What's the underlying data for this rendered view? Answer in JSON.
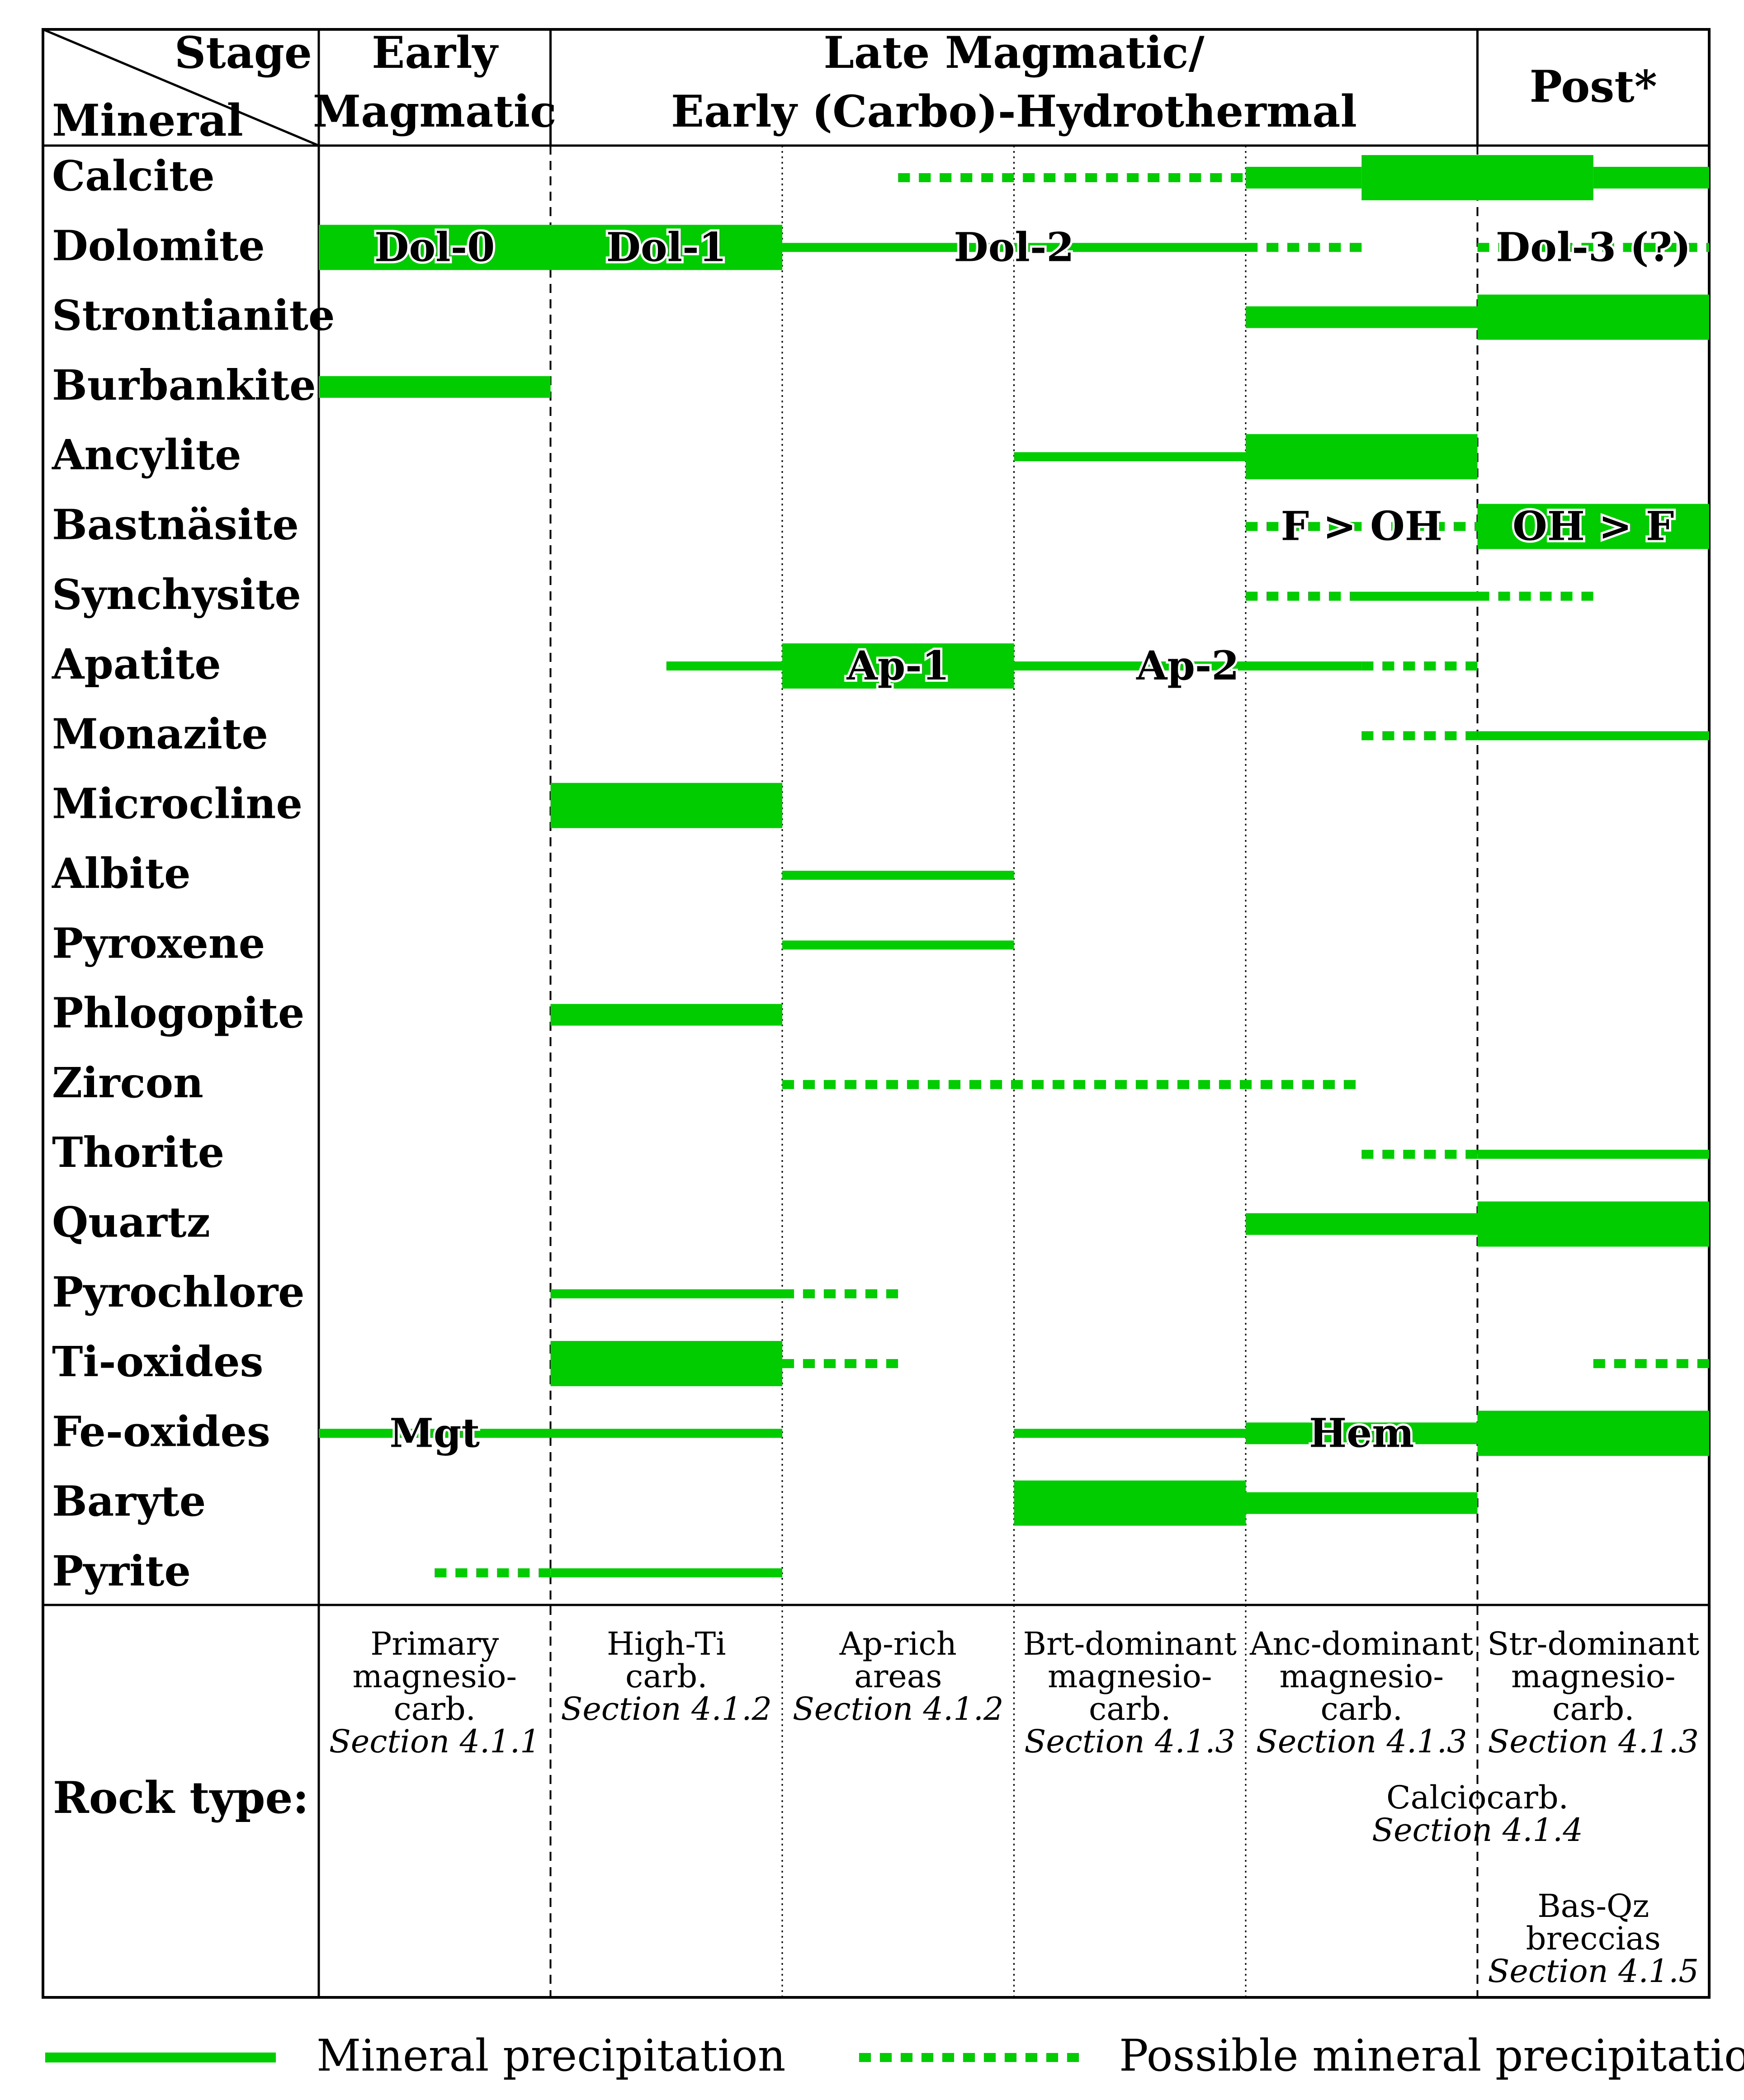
{
  "header": {
    "stage_label": "Stage",
    "mineral_label": "Mineral",
    "stage_groups": [
      {
        "lines": [
          "Early",
          "Magmatic"
        ]
      },
      {
        "lines": [
          "Late Magmatic/",
          "Early (Carbo)-Hydrothermal"
        ]
      },
      {
        "lines": [
          "Post*"
        ]
      }
    ]
  },
  "minerals": [
    {
      "name": "Calcite",
      "bars": [
        {
          "start": 2.5,
          "end": 4.0,
          "style": "dotted",
          "weight": "thin"
        },
        {
          "start": 4.0,
          "end": 4.5,
          "style": "solid",
          "weight": "medium"
        },
        {
          "start": 4.5,
          "end": 5.5,
          "style": "solid",
          "weight": "thick"
        },
        {
          "start": 5.5,
          "end": 6.0,
          "style": "solid",
          "weight": "medium"
        }
      ]
    },
    {
      "name": "Dolomite",
      "bars": [
        {
          "start": 0.0,
          "end": 1.0,
          "style": "solid",
          "weight": "thick",
          "label": "Dol-0"
        },
        {
          "start": 1.0,
          "end": 2.0,
          "style": "solid",
          "weight": "thick",
          "label": "Dol-1"
        },
        {
          "start": 2.0,
          "end": 4.0,
          "style": "solid",
          "weight": "thin",
          "label": "Dol-2"
        },
        {
          "start": 4.0,
          "end": 4.5,
          "style": "dotted",
          "weight": "thin"
        },
        {
          "start": 5.0,
          "end": 6.0,
          "style": "dotted",
          "weight": "thin",
          "label": "Dol-3 (?)"
        }
      ]
    },
    {
      "name": "Strontianite",
      "bars": [
        {
          "start": 4.0,
          "end": 5.0,
          "style": "solid",
          "weight": "medium"
        },
        {
          "start": 5.0,
          "end": 6.0,
          "style": "solid",
          "weight": "thick"
        }
      ]
    },
    {
      "name": "Burbankite",
      "bars": [
        {
          "start": 0.0,
          "end": 1.0,
          "style": "solid",
          "weight": "medium"
        }
      ]
    },
    {
      "name": "Ancylite",
      "bars": [
        {
          "start": 3.0,
          "end": 4.0,
          "style": "solid",
          "weight": "thin"
        },
        {
          "start": 4.0,
          "end": 5.0,
          "style": "solid",
          "weight": "thick"
        }
      ]
    },
    {
      "name": "Bastnäsite",
      "bars": [
        {
          "start": 4.0,
          "end": 5.0,
          "style": "dotted",
          "weight": "thin",
          "label": "F > OH"
        },
        {
          "start": 5.0,
          "end": 6.0,
          "style": "solid",
          "weight": "thick",
          "label": "OH > F"
        }
      ]
    },
    {
      "name": "Synchysite",
      "bars": [
        {
          "start": 4.0,
          "end": 4.45,
          "style": "dotted",
          "weight": "thin"
        },
        {
          "start": 4.45,
          "end": 5.0,
          "style": "solid",
          "weight": "thin"
        },
        {
          "start": 5.0,
          "end": 5.5,
          "style": "dotted",
          "weight": "thin"
        }
      ]
    },
    {
      "name": "Apatite",
      "bars": [
        {
          "start": 1.5,
          "end": 2.0,
          "style": "solid",
          "weight": "thin"
        },
        {
          "start": 2.0,
          "end": 3.0,
          "style": "solid",
          "weight": "thick",
          "label": "Ap-1"
        },
        {
          "start": 3.0,
          "end": 4.5,
          "style": "solid",
          "weight": "thin",
          "label": "Ap-2"
        },
        {
          "start": 4.5,
          "end": 5.0,
          "style": "dotted",
          "weight": "thin"
        }
      ]
    },
    {
      "name": "Monazite",
      "bars": [
        {
          "start": 4.5,
          "end": 5.0,
          "style": "dotted",
          "weight": "thin"
        },
        {
          "start": 5.0,
          "end": 6.0,
          "style": "solid",
          "weight": "thin"
        }
      ]
    },
    {
      "name": "Microcline",
      "bars": [
        {
          "start": 1.0,
          "end": 2.0,
          "style": "solid",
          "weight": "thick"
        }
      ]
    },
    {
      "name": "Albite",
      "bars": [
        {
          "start": 2.0,
          "end": 3.0,
          "style": "solid",
          "weight": "thin"
        }
      ]
    },
    {
      "name": "Pyroxene",
      "bars": [
        {
          "start": 2.0,
          "end": 3.0,
          "style": "solid",
          "weight": "thin"
        }
      ]
    },
    {
      "name": "Phlogopite",
      "bars": [
        {
          "start": 1.0,
          "end": 2.0,
          "style": "solid",
          "weight": "medium"
        }
      ]
    },
    {
      "name": "Zircon",
      "bars": [
        {
          "start": 2.0,
          "end": 4.5,
          "style": "dotted",
          "weight": "thin"
        }
      ]
    },
    {
      "name": "Thorite",
      "bars": [
        {
          "start": 4.5,
          "end": 5.0,
          "style": "dotted",
          "weight": "thin"
        },
        {
          "start": 5.0,
          "end": 6.0,
          "style": "solid",
          "weight": "thin"
        }
      ]
    },
    {
      "name": "Quartz",
      "bars": [
        {
          "start": 4.0,
          "end": 5.0,
          "style": "solid",
          "weight": "medium"
        },
        {
          "start": 5.0,
          "end": 6.0,
          "style": "solid",
          "weight": "thick"
        }
      ]
    },
    {
      "name": "Pyrochlore",
      "bars": [
        {
          "start": 1.0,
          "end": 2.0,
          "style": "solid",
          "weight": "thin"
        },
        {
          "start": 2.0,
          "end": 2.5,
          "style": "dotted",
          "weight": "thin"
        }
      ]
    },
    {
      "name": "Ti-oxides",
      "bars": [
        {
          "start": 1.0,
          "end": 2.0,
          "style": "solid",
          "weight": "thick"
        },
        {
          "start": 2.0,
          "end": 2.5,
          "style": "dotted",
          "weight": "thin"
        },
        {
          "start": 5.5,
          "end": 6.0,
          "style": "dotted",
          "weight": "thin"
        }
      ]
    },
    {
      "name": "Fe-oxides",
      "bars": [
        {
          "start": 0.0,
          "end": 2.0,
          "style": "solid",
          "weight": "thin",
          "label": "Mgt",
          "label_at": 0.5
        },
        {
          "start": 3.0,
          "end": 4.0,
          "style": "solid",
          "weight": "thin"
        },
        {
          "start": 4.0,
          "end": 5.0,
          "style": "solid",
          "weight": "medium",
          "label": "Hem"
        },
        {
          "start": 5.0,
          "end": 6.0,
          "style": "solid",
          "weight": "thick"
        }
      ]
    },
    {
      "name": "Baryte",
      "bars": [
        {
          "start": 3.0,
          "end": 4.0,
          "style": "solid",
          "weight": "thick"
        },
        {
          "start": 4.0,
          "end": 5.0,
          "style": "solid",
          "weight": "medium"
        }
      ]
    },
    {
      "name": "Pyrite",
      "bars": [
        {
          "start": 0.5,
          "end": 1.0,
          "style": "dotted",
          "weight": "thin"
        },
        {
          "start": 1.0,
          "end": 2.0,
          "style": "solid",
          "weight": "thin"
        }
      ]
    }
  ],
  "rock_type": {
    "label": "Rock type:",
    "columns": [
      {
        "lines": [
          "Primary",
          "magnesio-",
          "carb."
        ],
        "section": "Section 4.1.1"
      },
      {
        "lines": [
          "High-Ti",
          "carb."
        ],
        "section": "Section 4.1.2"
      },
      {
        "lines": [
          "Ap-rich",
          "areas"
        ],
        "section": "Section 4.1.2"
      },
      {
        "lines": [
          "Brt-dominant",
          "magnesio-",
          "carb."
        ],
        "section": "Section 4.1.3"
      },
      {
        "lines": [
          "Anc-dominant",
          "magnesio-",
          "carb."
        ],
        "section": "Section 4.1.3"
      },
      {
        "lines": [
          "Str-dominant",
          "magnesio-",
          "carb."
        ],
        "section": "Section 4.1.3"
      }
    ],
    "extra": [
      {
        "lines": [
          "Calciocarb."
        ],
        "section": "Section 4.1.4"
      },
      {
        "lines": [
          "Bas-Qz",
          "breccias"
        ],
        "section": "Section 4.1.5"
      }
    ]
  },
  "legend": {
    "solid": "Mineral precipitation",
    "dotted": "Possible mineral precipitation"
  },
  "colors": {
    "bar": "#00cc00",
    "line": "#000000",
    "background": "#ffffff"
  }
}
